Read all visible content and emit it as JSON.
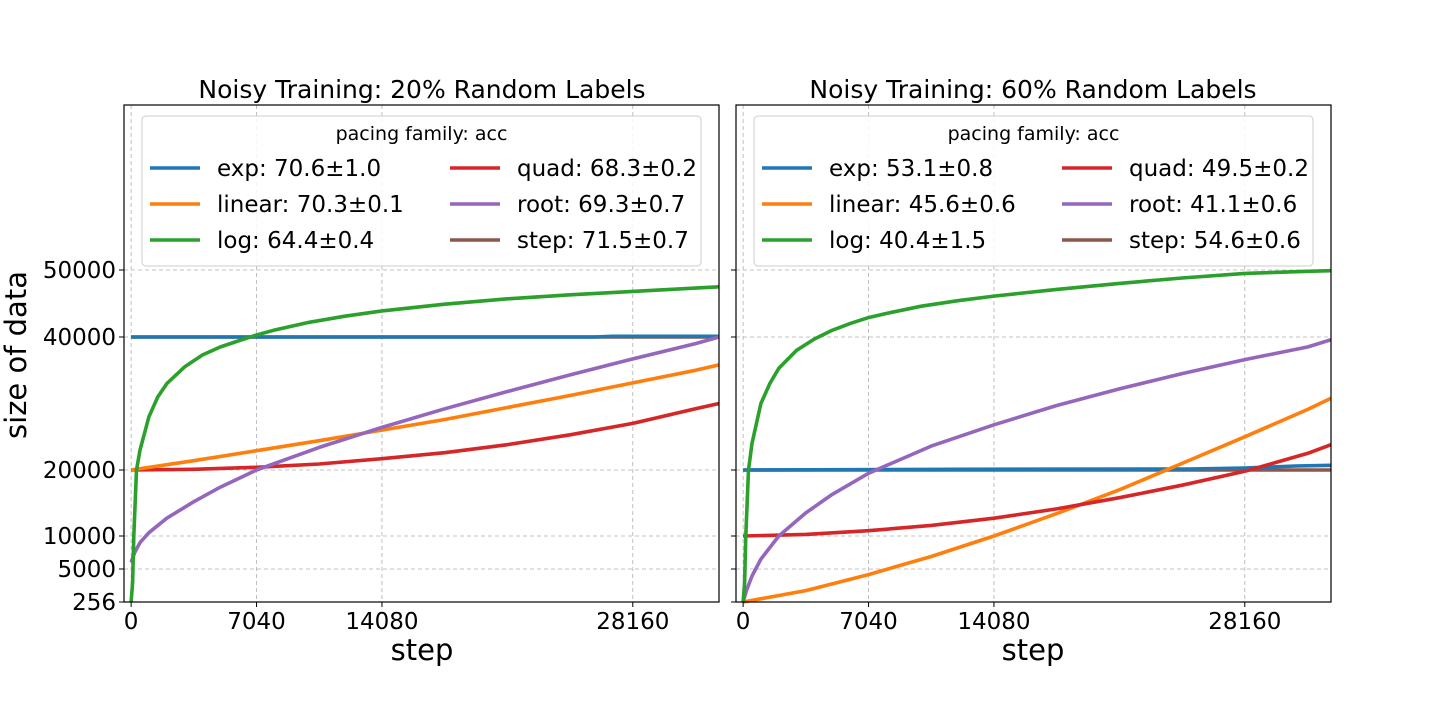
{
  "chart_data": [
    {
      "type": "line",
      "title": "Noisy Training: 20% Random Labels",
      "xlabel": "step",
      "ylabel": "size of data",
      "xlim": [
        -400,
        33000
      ],
      "ylim": [
        256,
        50000
      ],
      "xticks": [
        0,
        7040,
        14080,
        28160
      ],
      "xtick_labels": [
        "0",
        "7040",
        "14080",
        "28160"
      ],
      "yticks": [
        256,
        5000,
        10000,
        20000,
        40000,
        50000
      ],
      "ytick_labels": [
        "256",
        "5000",
        "10000",
        "20000",
        "40000",
        "50000"
      ],
      "y_scale": "sqrt",
      "grid": true,
      "legend": {
        "title": "pacing family: acc",
        "placement": "top",
        "columns": 2,
        "entries": [
          {
            "label": "exp: 70.6±1.0",
            "color": "#1f77b4"
          },
          {
            "label": "linear: 70.3±0.1",
            "color": "#ff7f0e"
          },
          {
            "label": "log: 64.4±0.4",
            "color": "#2ca02c"
          },
          {
            "label": "quad: 68.3±0.2",
            "color": "#d62728"
          },
          {
            "label": "root: 69.3±0.7",
            "color": "#9467bd"
          },
          {
            "label": "step: 71.5±0.7",
            "color": "#8c564b"
          }
        ]
      },
      "series": [
        {
          "color": "#8c564b",
          "x": [
            0,
            33000
          ],
          "y": [
            40000,
            40000
          ]
        },
        {
          "color": "#1f77b4",
          "x": [
            0,
            26000,
            27000,
            33000
          ],
          "y": [
            40000,
            40000,
            40100,
            40100
          ]
        },
        {
          "color": "#d62728",
          "x": [
            0,
            3520,
            7040,
            10560,
            14080,
            17600,
            21120,
            24640,
            28160,
            31680,
            33000
          ],
          "y": [
            20000,
            20100,
            20400,
            20900,
            21700,
            22600,
            23800,
            25300,
            27000,
            29200,
            30000
          ]
        },
        {
          "color": "#ff7f0e",
          "x": [
            0,
            3520,
            7040,
            10560,
            14080,
            17600,
            21120,
            24640,
            28160,
            31680,
            33000
          ],
          "y": [
            20000,
            21400,
            22900,
            24400,
            26000,
            27600,
            29400,
            31200,
            33100,
            35000,
            35800
          ]
        },
        {
          "color": "#9467bd",
          "x": [
            0,
            200,
            500,
            1000,
            2000,
            3520,
            5000,
            7040,
            10560,
            14080,
            17600,
            21120,
            24640,
            28160,
            31680,
            33000
          ],
          "y": [
            6000,
            7500,
            9000,
            10500,
            12700,
            15200,
            17400,
            20000,
            23400,
            26400,
            29200,
            31800,
            34300,
            36700,
            39000,
            40000
          ]
        },
        {
          "color": "#2ca02c",
          "x": [
            0,
            80,
            150,
            300,
            500,
            1000,
            1500,
            2000,
            3000,
            4000,
            5000,
            6000,
            7040,
            8000,
            10000,
            12000,
            14080,
            17600,
            21120,
            24640,
            28160,
            31680,
            33000
          ],
          "y": [
            256,
            3000,
            10000,
            20000,
            23000,
            28000,
            31000,
            33000,
            35500,
            37300,
            38500,
            39400,
            40300,
            41000,
            42200,
            43100,
            43900,
            44900,
            45700,
            46300,
            46800,
            47300,
            47500
          ]
        }
      ]
    },
    {
      "type": "line",
      "title": "Noisy Training: 60% Random Labels",
      "xlabel": "step",
      "ylim": [
        256,
        50000
      ],
      "xlim": [
        -400,
        33000
      ],
      "xticks": [
        0,
        7040,
        14080,
        28160
      ],
      "xtick_labels": [
        "0",
        "7040",
        "14080",
        "28160"
      ],
      "y_scale": "sqrt",
      "grid": true,
      "legend": {
        "title": "pacing family: acc",
        "placement": "top",
        "columns": 2,
        "entries": [
          {
            "label": "exp: 53.1±0.8",
            "color": "#1f77b4"
          },
          {
            "label": "linear: 45.6±0.6",
            "color": "#ff7f0e"
          },
          {
            "label": "log: 40.4±1.5",
            "color": "#2ca02c"
          },
          {
            "label": "quad: 49.5±0.2",
            "color": "#d62728"
          },
          {
            "label": "root: 41.1±0.6",
            "color": "#9467bd"
          },
          {
            "label": "step: 54.6±0.6",
            "color": "#8c564b"
          }
        ]
      },
      "series": [
        {
          "color": "#8c564b",
          "x": [
            0,
            33000
          ],
          "y": [
            20000,
            20000
          ]
        },
        {
          "color": "#1f77b4",
          "x": [
            0,
            12000,
            25000,
            28160,
            31000,
            33000
          ],
          "y": [
            20000,
            20100,
            20150,
            20300,
            20600,
            20700
          ]
        },
        {
          "color": "#ff7f0e",
          "x": [
            0,
            3520,
            7040,
            10560,
            14080,
            17600,
            21120,
            24640,
            28160,
            31680,
            33000
          ],
          "y": [
            256,
            1900,
            4200,
            6900,
            10000,
            13400,
            17000,
            21000,
            25000,
            29100,
            30800
          ]
        },
        {
          "color": "#d62728",
          "x": [
            0,
            3520,
            7040,
            10560,
            14080,
            17600,
            21120,
            24640,
            28160,
            31680,
            33000
          ],
          "y": [
            10000,
            10250,
            10800,
            11600,
            12700,
            14100,
            15800,
            17700,
            19800,
            22500,
            23800
          ]
        },
        {
          "color": "#9467bd",
          "x": [
            0,
            200,
            500,
            1000,
            2000,
            3520,
            5000,
            7040,
            10560,
            14080,
            17600,
            21120,
            24640,
            28160,
            31680,
            33000
          ],
          "y": [
            256,
            2000,
            4000,
            6500,
            10000,
            13500,
            16300,
            19500,
            23600,
            26800,
            29700,
            32200,
            34500,
            36600,
            38500,
            39600
          ]
        },
        {
          "color": "#2ca02c",
          "x": [
            0,
            80,
            150,
            300,
            500,
            1000,
            1500,
            2000,
            3000,
            4000,
            5000,
            6000,
            7040,
            8000,
            10000,
            12000,
            14080,
            17600,
            21120,
            24640,
            28160,
            31680,
            33000
          ],
          "y": [
            256,
            3000,
            10000,
            20000,
            24000,
            30000,
            33000,
            35300,
            38000,
            39700,
            41000,
            42000,
            42900,
            43500,
            44600,
            45400,
            46100,
            47100,
            48000,
            48800,
            49500,
            49800,
            49900
          ]
        }
      ]
    }
  ]
}
